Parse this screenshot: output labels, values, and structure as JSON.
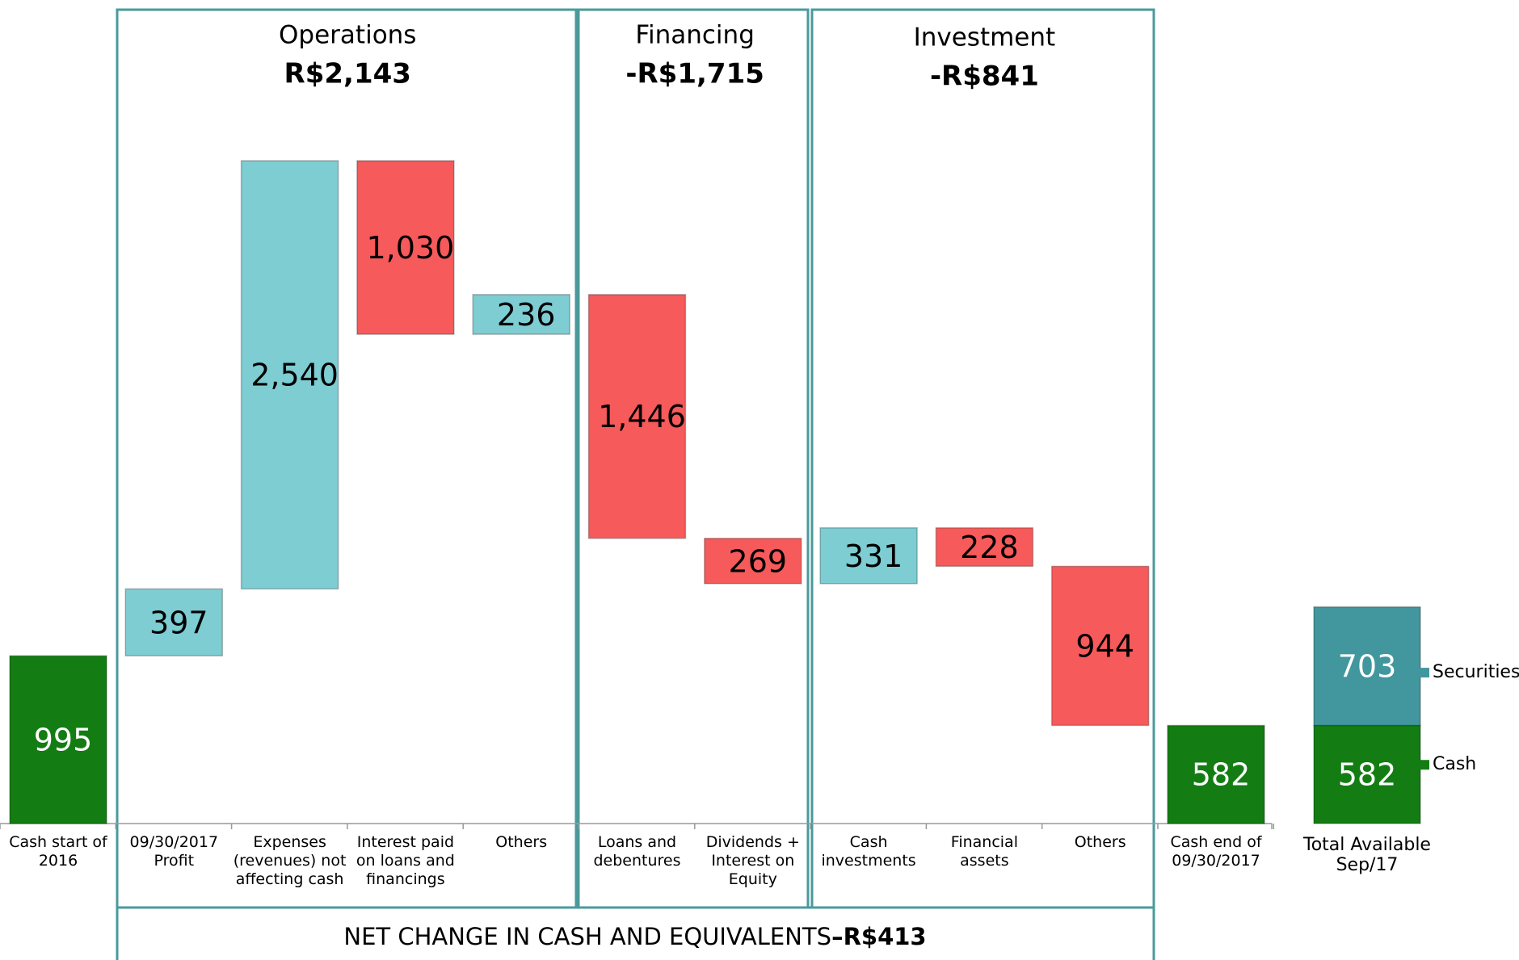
{
  "chart_data": {
    "type": "waterfall",
    "categories": [
      "Cash start of 2016",
      "09/30/2017 Profit",
      "Expenses (revenues) not affecting cash",
      "Interest paid on loans and financings",
      "Others",
      "Loans and debentures",
      "Dividends + Interest on Equity",
      "Cash investments",
      "Financial assets",
      "Others",
      "Cash end of 09/30/2017"
    ],
    "values": [
      995,
      397,
      2540,
      -1030,
      236,
      -1446,
      -269,
      331,
      -228,
      -944,
      582
    ],
    "value_labels": [
      "995",
      "397",
      "2,540",
      "1,030",
      "236",
      "1,446",
      "269",
      "331",
      "228",
      "944",
      "582"
    ],
    "measures": [
      "absolute",
      "relative",
      "relative",
      "relative",
      "relative",
      "relative",
      "relative",
      "relative",
      "relative",
      "relative",
      "total"
    ],
    "colors": {
      "total": "#137d13",
      "increase": "#7dcdd3",
      "decrease": "#f65a5a"
    },
    "groups": [
      {
        "title": "Operations",
        "amount": "R$2,143"
      },
      {
        "title": "Financing",
        "amount": "-R$1,715"
      },
      {
        "title": "Investment",
        "amount": "-R$841"
      }
    ],
    "footer": {
      "text": "NET CHANGE IN CASH AND EQUIVALENTS",
      "amount": "–R$413"
    },
    "total_available": {
      "category": "Total Available Sep/17",
      "series": [
        {
          "name": "Cash",
          "color": "#137d13",
          "values": [
            582
          ]
        },
        {
          "name": "Securities",
          "color": "#41979d",
          "values": [
            703
          ]
        }
      ]
    }
  }
}
